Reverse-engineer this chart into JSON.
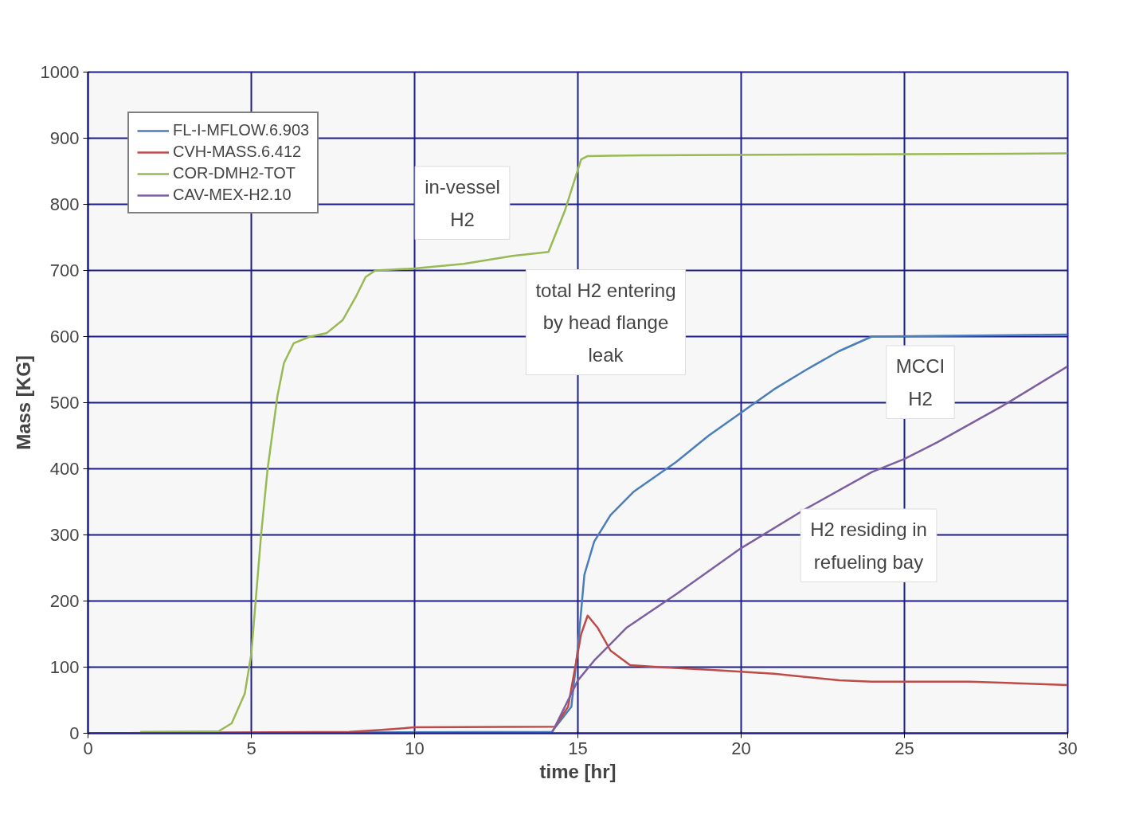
{
  "chart_data": {
    "type": "line",
    "xlabel": "time [hr]",
    "ylabel": "Mass [KG]",
    "xlim": [
      0,
      30
    ],
    "ylim": [
      0,
      1000
    ],
    "xticks": [
      0,
      5,
      10,
      15,
      20,
      25,
      30
    ],
    "yticks": [
      0,
      100,
      200,
      300,
      400,
      500,
      600,
      700,
      800,
      900,
      1000
    ],
    "grid": true,
    "legend": "top left",
    "line_style": "solid",
    "marker": "none",
    "annotations": [
      "in-vessel\nH2",
      "total H2 entering\nby head flange\nleak",
      "MCCI\nH2",
      "H2 residing in\nrefueling bay"
    ],
    "series": [
      {
        "name": "FL-I-MFLOW.6.903",
        "color": "#4a7ebb",
        "x": [
          0,
          14.2,
          14.8,
          15.0,
          15.2,
          15.5,
          16,
          16.7,
          18,
          19,
          20,
          21,
          22,
          23,
          24,
          30
        ],
        "values": [
          0,
          2,
          40,
          130,
          240,
          290,
          330,
          365,
          410,
          450,
          485,
          520,
          550,
          578,
          600,
          603
        ]
      },
      {
        "name": "CVH-MASS.6.412",
        "color": "#be4b48",
        "x": [
          0,
          8,
          9,
          10,
          14.3,
          14.7,
          15.1,
          15.3,
          15.6,
          16,
          16.6,
          17.5,
          19,
          21,
          23,
          24,
          27,
          30
        ],
        "values": [
          0,
          2,
          5,
          9,
          10,
          40,
          150,
          178,
          160,
          125,
          103,
          100,
          96,
          90,
          80,
          78,
          78,
          73
        ]
      },
      {
        "name": "COR-DMH2-TOT",
        "color": "#98b954",
        "x": [
          1.6,
          4,
          4.4,
          4.8,
          5,
          5.3,
          5.5,
          5.8,
          6.0,
          6.3,
          6.8,
          7.3,
          7.8,
          8.2,
          8.5,
          8.8,
          10,
          11.5,
          13,
          14.1,
          14.6,
          15.1,
          15.3,
          17,
          30
        ],
        "values": [
          2,
          3,
          15,
          60,
          120,
          300,
          400,
          510,
          560,
          590,
          600,
          605,
          625,
          660,
          690,
          700,
          703,
          710,
          722,
          728,
          790,
          868,
          873,
          874,
          877
        ]
      },
      {
        "name": "CAV-MEX-H2.10",
        "color": "#7d5fa0",
        "x": [
          0,
          14.2,
          15,
          15.5,
          16.5,
          18,
          20,
          22,
          24,
          25,
          26,
          28,
          30
        ],
        "values": [
          0,
          0,
          80,
          110,
          160,
          210,
          280,
          340,
          395,
          415,
          440,
          495,
          555
        ]
      }
    ]
  }
}
